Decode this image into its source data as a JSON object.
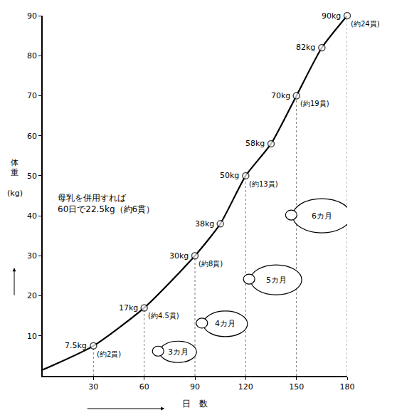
{
  "chart_data": {
    "type": "line",
    "x_label": "日　数",
    "y_label": "体重 (kg)",
    "x": [
      0,
      30,
      60,
      90,
      105,
      120,
      135,
      150,
      165,
      180
    ],
    "values": [
      1.5,
      7.5,
      17,
      30,
      38,
      50,
      58,
      70,
      82,
      90
    ],
    "value_labels": [
      null,
      "7.5kg (約2貫)",
      "17kg (約4.5貫)",
      "30kg (約8貫)",
      "38kg",
      "50kg (約13貫)",
      "58kg",
      "70kg (約19貫)",
      "82kg",
      "90kg (約24貫)"
    ],
    "color": "#000000",
    "marker": "open circle",
    "line_style": "solid",
    "xlim": [
      0,
      180
    ],
    "ylim": [
      0,
      90
    ],
    "xticks": [
      30,
      60,
      90,
      120,
      150,
      180
    ],
    "yticks": [
      10,
      20,
      30,
      40,
      50,
      60,
      70,
      80,
      90
    ],
    "grid": false,
    "annotations": [
      {
        "text": "母乳を併用すれば\n60日で22.5kg（約6貫）",
        "x": 8,
        "y": 43
      },
      {
        "text": "3カ月",
        "x": 80,
        "y": 6
      },
      {
        "text": "4カ月",
        "x": 108,
        "y": 13
      },
      {
        "text": "5カ月",
        "x": 138,
        "y": 24
      },
      {
        "text": "6カ月",
        "x": 165,
        "y": 40
      }
    ]
  }
}
